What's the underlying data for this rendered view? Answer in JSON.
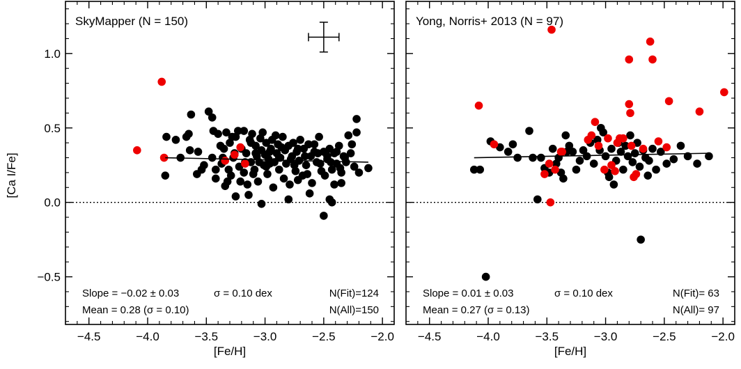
{
  "figure": {
    "ylabel": "[Ca I/Fe]"
  },
  "chart_data": [
    {
      "type": "scatter",
      "title": "SkyMapper  (N = 150)",
      "xlabel": "[Fe/H]",
      "ylabel": "[Ca I/Fe]",
      "xlim": [
        -4.7,
        -1.9
      ],
      "ylim": [
        -0.82,
        1.35
      ],
      "x_ticks": [
        "−4.5",
        "−4.0",
        "−3.5",
        "−3.0",
        "−2.5",
        "−2.0"
      ],
      "x_tick_values": [
        -4.5,
        -4.0,
        -3.5,
        -3.0,
        -2.5,
        -2.0
      ],
      "y_ticks": [
        "−0.5",
        "0.0",
        "0.5",
        "1.0"
      ],
      "y_tick_values": [
        -0.5,
        0.0,
        0.5,
        1.0
      ],
      "grid": false,
      "zero_line": 0.0,
      "error_bar": {
        "x": -2.5,
        "y": 1.11,
        "xerr": 0.13,
        "yerr": 0.1
      },
      "fit_line": {
        "x": [
          -3.85,
          -2.12
        ],
        "y": [
          0.3,
          0.27
        ]
      },
      "stats": {
        "slope_text": "Slope = −0.02 ± 0.03",
        "sigma_text": "σ = 0.10 dex",
        "nfit_text": "N(Fit)=124",
        "mean_text": "Mean =  0.28 (σ = 0.10)",
        "nall_text": "N(All)=150"
      },
      "series": [
        {
          "color": "#000000",
          "points": [
            [
              -3.84,
              0.44
            ],
            [
              -3.85,
              0.18
            ],
            [
              -3.76,
              0.42
            ],
            [
              -3.72,
              0.3
            ],
            [
              -3.67,
              0.44
            ],
            [
              -3.63,
              0.59
            ],
            [
              -3.65,
              0.46
            ],
            [
              -3.64,
              0.35
            ],
            [
              -3.57,
              0.34
            ],
            [
              -3.54,
              0.22
            ],
            [
              -3.48,
              0.61
            ],
            [
              -3.45,
              0.57
            ],
            [
              -3.44,
              0.48
            ],
            [
              -3.42,
              0.22
            ],
            [
              -3.4,
              0.46
            ],
            [
              -3.38,
              0.38
            ],
            [
              -3.36,
              0.3
            ],
            [
              -3.33,
              0.47
            ],
            [
              -3.3,
              0.4
            ],
            [
              -3.29,
              0.18
            ],
            [
              -3.27,
              0.3
            ],
            [
              -3.25,
              0.44
            ],
            [
              -3.23,
              0.48
            ],
            [
              -3.22,
              0.24
            ],
            [
              -3.2,
              0.36
            ],
            [
              -3.18,
              0.2
            ],
            [
              -3.16,
              0.33
            ],
            [
              -3.15,
              0.12
            ],
            [
              -3.13,
              0.42
            ],
            [
              -3.12,
              0.27
            ],
            [
              -3.11,
              0.46
            ],
            [
              -3.09,
              0.22
            ],
            [
              -3.08,
              0.38
            ],
            [
              -3.07,
              0.31
            ],
            [
              -3.06,
              0.14
            ],
            [
              -3.04,
              0.43
            ],
            [
              -3.03,
              0.35
            ],
            [
              -3.02,
              0.47
            ],
            [
              -3.01,
              0.25
            ],
            [
              -3.0,
              0.32
            ],
            [
              -2.99,
              0.4
            ],
            [
              -2.98,
              0.19
            ],
            [
              -2.97,
              0.29
            ],
            [
              -2.95,
              0.36
            ],
            [
              -2.94,
              0.42
            ],
            [
              -2.93,
              0.1
            ],
            [
              -2.92,
              0.27
            ],
            [
              -2.9,
              0.33
            ],
            [
              -2.89,
              0.39
            ],
            [
              -2.88,
              0.22
            ],
            [
              -2.87,
              0.3
            ],
            [
              -2.85,
              0.44
            ],
            [
              -2.84,
              0.16
            ],
            [
              -2.83,
              0.35
            ],
            [
              -2.82,
              0.26
            ],
            [
              -2.8,
              0.38
            ],
            [
              -2.79,
              0.12
            ],
            [
              -2.77,
              0.31
            ],
            [
              -2.76,
              0.4
            ],
            [
              -2.74,
              0.21
            ],
            [
              -2.73,
              0.34
            ],
            [
              -2.71,
              0.28
            ],
            [
              -2.7,
              0.42
            ],
            [
              -2.68,
              0.18
            ],
            [
              -2.67,
              0.36
            ],
            [
              -2.65,
              0.25
            ],
            [
              -2.63,
              0.39
            ],
            [
              -2.61,
              0.31
            ],
            [
              -2.6,
              0.13
            ],
            [
              -2.58,
              0.34
            ],
            [
              -2.56,
              0.27
            ],
            [
              -2.54,
              0.44
            ],
            [
              -2.52,
              0.21
            ],
            [
              -2.5,
              0.34
            ],
            [
              -2.49,
              0.18
            ],
            [
              -2.47,
              0.29
            ],
            [
              -2.45,
              0.36
            ],
            [
              -2.43,
              0.22
            ],
            [
              -2.41,
              0.33
            ],
            [
              -2.39,
              0.26
            ],
            [
              -2.37,
              0.38
            ],
            [
              -2.35,
              0.2
            ],
            [
              -2.33,
              0.31
            ],
            [
              -2.31,
              0.27
            ],
            [
              -2.29,
              0.45
            ],
            [
              -2.27,
              0.33
            ],
            [
              -2.26,
              0.39
            ],
            [
              -2.22,
              0.56
            ],
            [
              -2.22,
              0.47
            ],
            [
              -2.24,
              0.24
            ],
            [
              -2.2,
              0.2
            ],
            [
              -2.12,
              0.23
            ],
            [
              -2.35,
              0.13
            ],
            [
              -2.41,
              0.12
            ],
            [
              -2.45,
              0.02
            ],
            [
              -2.43,
              0.0
            ],
            [
              -2.5,
              -0.09
            ],
            [
              -2.62,
              0.06
            ],
            [
              -2.72,
              0.15
            ],
            [
              -2.8,
              0.02
            ],
            [
              -3.03,
              -0.01
            ],
            [
              -3.14,
              0.05
            ],
            [
              -3.25,
              0.04
            ],
            [
              -3.34,
              0.11
            ],
            [
              -3.42,
              0.16
            ],
            [
              -3.37,
              0.26
            ],
            [
              -3.32,
              0.14
            ],
            [
              -3.28,
              0.44
            ],
            [
              -3.18,
              0.48
            ],
            [
              -3.12,
              0.4
            ],
            [
              -3.05,
              0.27
            ],
            [
              -2.96,
              0.34
            ],
            [
              -2.91,
              0.45
            ],
            [
              -2.86,
              0.37
            ],
            [
              -2.78,
              0.29
            ],
            [
              -2.72,
              0.36
            ],
            [
              -2.66,
              0.31
            ],
            [
              -2.58,
              0.39
            ],
            [
              -2.53,
              0.26
            ],
            [
              -2.47,
              0.31
            ],
            [
              -2.39,
              0.34
            ],
            [
              -2.32,
              0.3
            ],
            [
              -3.45,
              0.3
            ],
            [
              -3.52,
              0.25
            ],
            [
              -3.58,
              0.19
            ],
            [
              -3.31,
              0.22
            ],
            [
              -3.21,
              0.14
            ],
            [
              -3.1,
              0.19
            ],
            [
              -2.99,
              0.24
            ],
            [
              -2.88,
              0.3
            ],
            [
              -2.75,
              0.25
            ],
            [
              -2.64,
              0.19
            ],
            [
              -2.55,
              0.33
            ],
            [
              -2.44,
              0.27
            ],
            [
              -2.36,
              0.23
            ],
            [
              -3.35,
              0.36
            ],
            [
              -3.26,
              0.33
            ],
            [
              -3.17,
              0.27
            ],
            [
              -3.08,
              0.33
            ],
            [
              -2.96,
              0.26
            ]
          ]
        },
        {
          "color": "#ee0000",
          "points": [
            [
              -4.09,
              0.35
            ],
            [
              -3.88,
              0.81
            ],
            [
              -3.86,
              0.3
            ],
            [
              -3.34,
              0.28
            ],
            [
              -3.26,
              0.32
            ],
            [
              -3.21,
              0.37
            ],
            [
              -3.17,
              0.26
            ]
          ]
        }
      ]
    },
    {
      "type": "scatter",
      "title": "Yong, Norris+ 2013 (N = 97)",
      "xlabel": "[Fe/H]",
      "xlim": [
        -4.7,
        -1.9
      ],
      "ylim": [
        -0.82,
        1.35
      ],
      "x_ticks": [
        "−4.5",
        "−4.0",
        "−3.5",
        "−3.0",
        "−2.5",
        "−2.0"
      ],
      "x_tick_values": [
        -4.5,
        -4.0,
        -3.5,
        -3.0,
        -2.5,
        -2.0
      ],
      "y_tick_values": [
        -0.5,
        0.0,
        0.5,
        1.0
      ],
      "grid": false,
      "zero_line": 0.0,
      "fit_line": {
        "x": [
          -4.12,
          -2.12
        ],
        "y": [
          0.3,
          0.33
        ]
      },
      "stats": {
        "slope_text": "Slope =  0.01 ± 0.03",
        "sigma_text": "σ = 0.10 dex",
        "nfit_text": "N(Fit)= 63",
        "mean_text": "Mean =  0.27 (σ = 0.13)",
        "nall_text": "N(All)= 97"
      },
      "series": [
        {
          "color": "#000000",
          "points": [
            [
              -4.12,
              0.22
            ],
            [
              -4.07,
              0.22
            ],
            [
              -4.02,
              -0.5
            ],
            [
              -3.98,
              0.41
            ],
            [
              -3.9,
              0.37
            ],
            [
              -3.83,
              0.34
            ],
            [
              -3.79,
              0.39
            ],
            [
              -3.75,
              0.3
            ],
            [
              -3.65,
              0.48
            ],
            [
              -3.62,
              0.3
            ],
            [
              -3.58,
              0.02
            ],
            [
              -3.55,
              0.3
            ],
            [
              -3.52,
              0.23
            ],
            [
              -3.48,
              0.2
            ],
            [
              -3.45,
              0.36
            ],
            [
              -3.42,
              0.26
            ],
            [
              -3.4,
              0.3
            ],
            [
              -3.38,
              0.2
            ],
            [
              -3.36,
              0.16
            ],
            [
              -3.34,
              0.45
            ],
            [
              -3.31,
              0.38
            ],
            [
              -3.28,
              0.34
            ],
            [
              -3.25,
              0.22
            ],
            [
              -3.22,
              0.28
            ],
            [
              -3.19,
              0.35
            ],
            [
              -3.16,
              0.31
            ],
            [
              -3.13,
              0.4
            ],
            [
              -3.1,
              0.26
            ],
            [
              -3.07,
              0.42
            ],
            [
              -3.05,
              0.35
            ],
            [
              -3.02,
              0.47
            ],
            [
              -3.0,
              0.31
            ],
            [
              -2.98,
              0.2
            ],
            [
              -2.95,
              0.36
            ],
            [
              -2.93,
              0.12
            ],
            [
              -2.91,
              0.28
            ],
            [
              -2.89,
              0.4
            ],
            [
              -2.87,
              0.34
            ],
            [
              -2.85,
              0.22
            ],
            [
              -2.83,
              0.38
            ],
            [
              -2.81,
              0.31
            ],
            [
              -2.79,
              0.45
            ],
            [
              -2.77,
              0.27
            ],
            [
              -2.75,
              0.33
            ],
            [
              -2.73,
              0.4
            ],
            [
              -2.71,
              0.24
            ],
            [
              -2.7,
              -0.25
            ],
            [
              -2.68,
              0.35
            ],
            [
              -2.66,
              0.3
            ],
            [
              -2.63,
              0.28
            ],
            [
              -2.6,
              0.36
            ],
            [
              -2.57,
              0.22
            ],
            [
              -2.53,
              0.34
            ],
            [
              -2.48,
              0.26
            ],
            [
              -2.42,
              0.29
            ],
            [
              -2.36,
              0.38
            ],
            [
              -2.3,
              0.31
            ],
            [
              -2.22,
              0.26
            ],
            [
              -2.12,
              0.31
            ],
            [
              -2.97,
              0.17
            ],
            [
              -3.04,
              0.5
            ],
            [
              -3.33,
              0.34
            ],
            [
              -2.64,
              0.18
            ]
          ]
        },
        {
          "color": "#ee0000",
          "points": [
            [
              -4.08,
              0.65
            ],
            [
              -3.95,
              0.39
            ],
            [
              -3.52,
              0.19
            ],
            [
              -3.48,
              0.26
            ],
            [
              -3.47,
              0.0
            ],
            [
              -3.46,
              1.16
            ],
            [
              -3.43,
              0.22
            ],
            [
              -3.38,
              0.34
            ],
            [
              -3.15,
              0.42
            ],
            [
              -3.12,
              0.45
            ],
            [
              -3.09,
              0.54
            ],
            [
              -2.98,
              0.43
            ],
            [
              -2.95,
              0.25
            ],
            [
              -2.92,
              0.21
            ],
            [
              -2.88,
              0.43
            ],
            [
              -2.85,
              0.43
            ],
            [
              -2.8,
              0.96
            ],
            [
              -2.8,
              0.66
            ],
            [
              -2.79,
              0.6
            ],
            [
              -2.78,
              0.38
            ],
            [
              -2.76,
              0.17
            ],
            [
              -2.74,
              0.19
            ],
            [
              -2.62,
              1.08
            ],
            [
              -2.6,
              0.96
            ],
            [
              -2.55,
              0.41
            ],
            [
              -2.48,
              0.37
            ],
            [
              -2.46,
              0.68
            ],
            [
              -2.2,
              0.61
            ],
            [
              -1.99,
              0.74
            ],
            [
              -3.01,
              0.22
            ],
            [
              -2.9,
              0.4
            ],
            [
              -3.37,
              0.34
            ],
            [
              -2.68,
              0.36
            ],
            [
              -3.06,
              0.38
            ]
          ]
        }
      ]
    }
  ]
}
